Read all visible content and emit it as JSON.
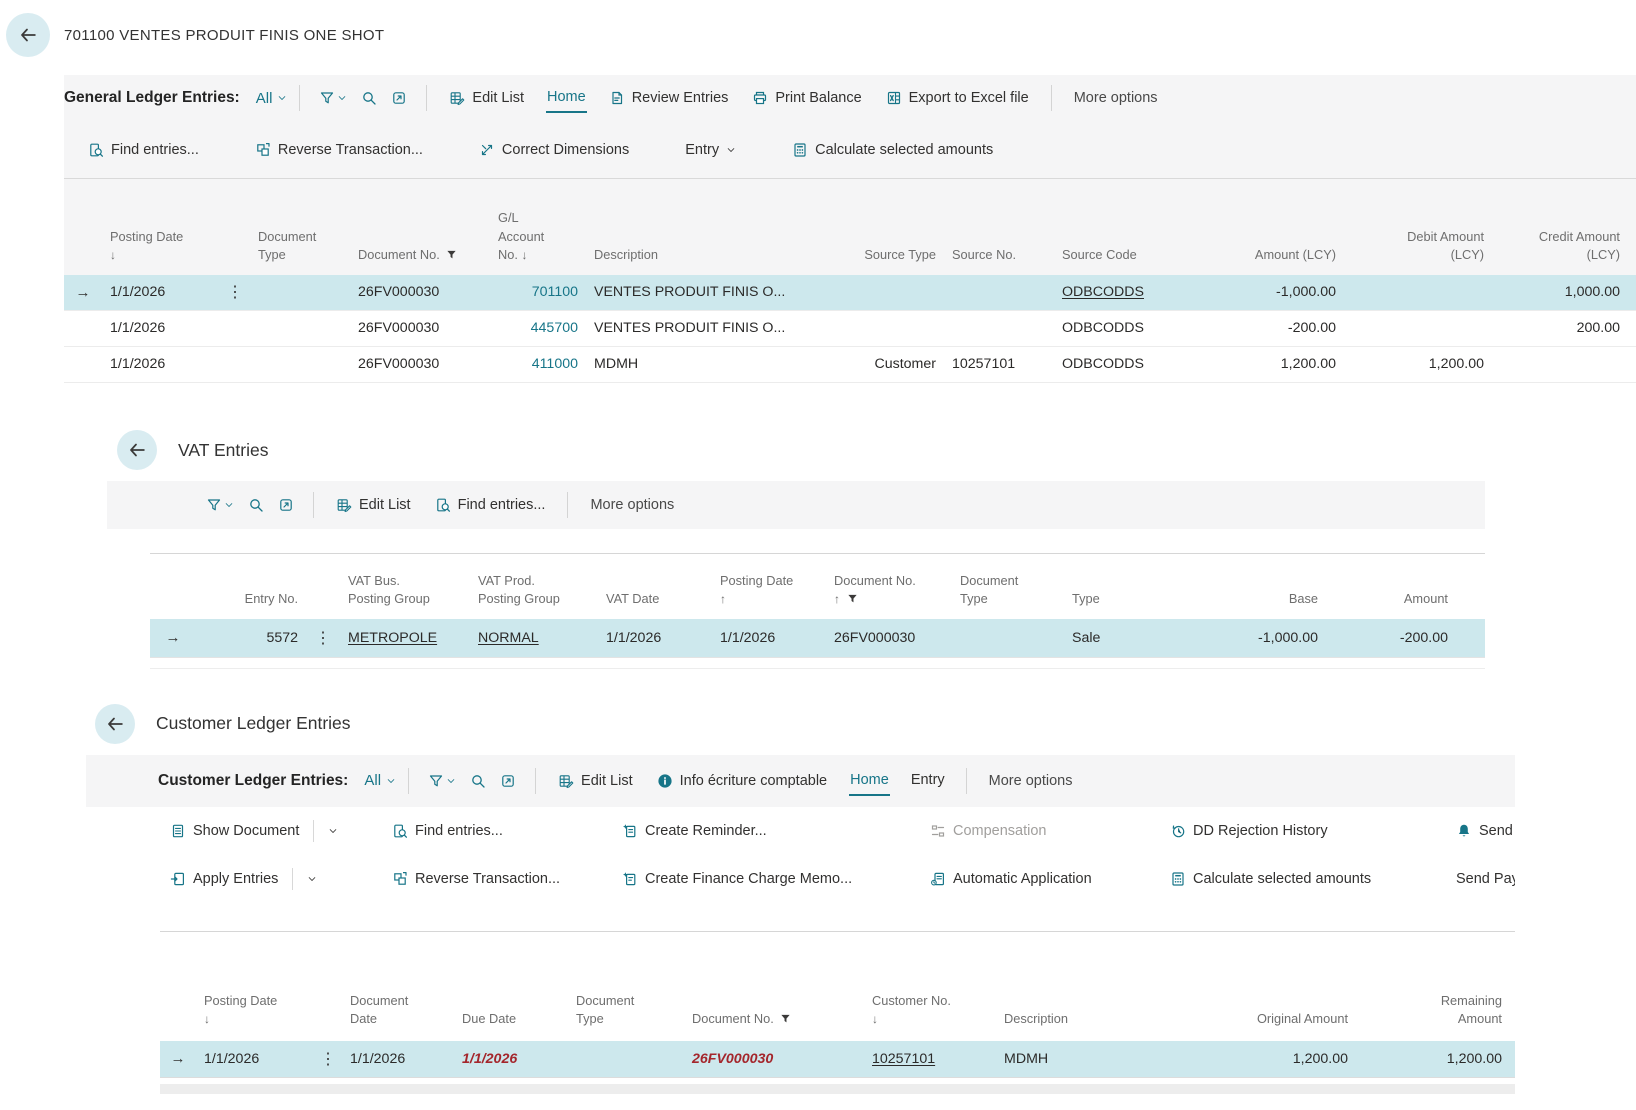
{
  "accent": "#177588",
  "gl": {
    "title": "701100 VENTES PRODUIT FINIS ONE SHOT",
    "caption": "General Ledger Entries:",
    "filter_all": "All",
    "more_options": "More options",
    "actions": [
      {
        "label": "Edit List",
        "icon": "edit-list"
      },
      {
        "label": "Home",
        "tab": true,
        "active": true
      },
      {
        "label": "Review Entries",
        "icon": "review-entries"
      },
      {
        "label": "Print Balance",
        "icon": "printer"
      },
      {
        "label": "Export to Excel file",
        "icon": "excel"
      }
    ],
    "commands": [
      {
        "label": "Find entries...",
        "icon": "find-entries"
      },
      {
        "label": "Reverse Transaction...",
        "icon": "reverse"
      },
      {
        "label": "Correct Dimensions",
        "icon": "correct-dimensions"
      },
      {
        "label": "Entry",
        "chevron": true
      },
      {
        "label": "Calculate selected amounts",
        "icon": "calculator"
      }
    ],
    "columns": [
      {
        "id": "posting-date",
        "lines": [
          "Posting Date",
          "{d}"
        ],
        "align": "left"
      },
      {
        "id": "document-type",
        "lines": [
          "Document",
          "Type"
        ],
        "align": "left"
      },
      {
        "id": "document-no",
        "lines": [
          "Document No. {f}"
        ],
        "align": "left"
      },
      {
        "id": "gl-account-no",
        "lines": [
          "G/L",
          "Account",
          "No. {d}"
        ],
        "align": "left",
        "cell_align": "right"
      },
      {
        "id": "description",
        "lines": [
          "Description"
        ],
        "align": "left"
      },
      {
        "id": "source-type",
        "lines": [
          "Source Type"
        ],
        "align": "right",
        "cell_align": "right"
      },
      {
        "id": "source-no",
        "lines": [
          "Source No."
        ],
        "align": "left"
      },
      {
        "id": "source-code",
        "lines": [
          "Source Code"
        ],
        "align": "left"
      },
      {
        "id": "amount-lcy",
        "lines": [
          "Amount (LCY)"
        ],
        "align": "right",
        "cell_align": "right"
      },
      {
        "id": "debit-amount-lcy",
        "lines": [
          "Debit Amount",
          "(LCY)"
        ],
        "align": "right",
        "cell_align": "right"
      },
      {
        "id": "credit-amount-lcy",
        "lines": [
          "Credit Amount",
          "(LCY)"
        ],
        "align": "right",
        "cell_align": "right"
      }
    ],
    "rows": [
      {
        "selected": true,
        "cells": [
          "1/1/2026",
          "",
          "26FV000030",
          {
            "t": "701100",
            "s": "lnk"
          },
          "VENTES PRODUIT FINIS O...",
          "",
          "",
          {
            "t": "ODBCODDS",
            "s": "lkp"
          },
          "-1,000.00",
          "",
          "1,000.00"
        ]
      },
      {
        "selected": false,
        "cells": [
          "1/1/2026",
          "",
          "26FV000030",
          {
            "t": "445700",
            "s": "lnk"
          },
          "VENTES PRODUIT FINIS O...",
          "",
          "",
          "ODBCODDS",
          "-200.00",
          "",
          "200.00"
        ]
      },
      {
        "selected": false,
        "cells": [
          "1/1/2026",
          "",
          "26FV000030",
          {
            "t": "411000",
            "s": "lnk"
          },
          "MDMH",
          "Customer",
          "10257101",
          "ODBCODDS",
          "1,200.00",
          "1,200.00",
          ""
        ]
      }
    ]
  },
  "vat": {
    "title": "VAT Entries",
    "more_options": "More options",
    "actions": [
      {
        "label": "Edit List",
        "icon": "edit-list"
      },
      {
        "label": "Find entries...",
        "icon": "find-entries"
      }
    ],
    "columns": [
      {
        "id": "entry-no",
        "lines": [
          "Entry No."
        ],
        "align": "right",
        "cell_align": "right"
      },
      {
        "id": "vat-bus-posting-group",
        "lines": [
          "VAT Bus.",
          "Posting Group"
        ],
        "align": "left"
      },
      {
        "id": "vat-prod-posting-group",
        "lines": [
          "VAT Prod.",
          "Posting Group"
        ],
        "align": "left"
      },
      {
        "id": "vat-date",
        "lines": [
          "VAT Date"
        ],
        "align": "left"
      },
      {
        "id": "posting-date",
        "lines": [
          "Posting Date",
          "{u}"
        ],
        "align": "left"
      },
      {
        "id": "document-no",
        "lines": [
          "Document No.",
          "{u} {f}"
        ],
        "align": "left"
      },
      {
        "id": "document-type",
        "lines": [
          "Document",
          "Type"
        ],
        "align": "left"
      },
      {
        "id": "type",
        "lines": [
          "Type"
        ],
        "align": "left"
      },
      {
        "id": "base",
        "lines": [
          "Base"
        ],
        "align": "right",
        "cell_align": "right"
      },
      {
        "id": "amount",
        "lines": [
          "Amount"
        ],
        "align": "right",
        "cell_align": "right"
      }
    ],
    "rows": [
      {
        "selected": true,
        "cells": [
          "5572",
          {
            "t": "METROPOLE",
            "s": "lkp"
          },
          {
            "t": "NORMAL",
            "s": "lkp"
          },
          "1/1/2026",
          "1/1/2026",
          "26FV000030",
          "",
          "Sale",
          "-1,000.00",
          "-200.00"
        ]
      }
    ]
  },
  "cust": {
    "title": "Customer Ledger Entries",
    "caption": "Customer Ledger Entries:",
    "filter_all": "All",
    "more_options": "More options",
    "actions": [
      {
        "label": "Edit List",
        "icon": "edit-list"
      },
      {
        "label": "Info écriture comptable",
        "icon": "info"
      },
      {
        "label": "Home",
        "tab": true,
        "active": true
      },
      {
        "label": "Entry",
        "tab": true
      }
    ],
    "commands_row1": [
      {
        "label": "Show Document",
        "icon": "show-document",
        "split": true
      },
      {
        "label": "Find entries...",
        "icon": "find-entries"
      },
      {
        "label": "Create Reminder...",
        "icon": "create-reminder"
      },
      {
        "label": "Compensation",
        "icon": "compensation",
        "disabled": true
      },
      {
        "label": "DD Rejection History",
        "icon": "history"
      },
      {
        "label": "Send To",
        "icon": "bell"
      }
    ],
    "commands_row2": [
      {
        "label": "Apply Entries",
        "icon": "apply-entries",
        "split": true
      },
      {
        "label": "Reverse Transaction...",
        "icon": "reverse"
      },
      {
        "label": "Create Finance Charge Memo...",
        "icon": "finance-memo"
      },
      {
        "label": "Automatic Application",
        "icon": "automatic-application"
      },
      {
        "label": "Calculate selected amounts",
        "icon": "calculator"
      },
      {
        "label": "Send Pay"
      }
    ],
    "columns": [
      {
        "id": "posting-date",
        "lines": [
          "Posting Date",
          "{d}"
        ],
        "align": "left"
      },
      {
        "id": "document-date",
        "lines": [
          "Document",
          "Date"
        ],
        "align": "left"
      },
      {
        "id": "due-date",
        "lines": [
          "Due Date"
        ],
        "align": "left"
      },
      {
        "id": "document-type",
        "lines": [
          "Document",
          "Type"
        ],
        "align": "left"
      },
      {
        "id": "document-no",
        "lines": [
          "Document No. {f}"
        ],
        "align": "left"
      },
      {
        "id": "customer-no",
        "lines": [
          "Customer No.",
          "{d}"
        ],
        "align": "left"
      },
      {
        "id": "description",
        "lines": [
          "Description"
        ],
        "align": "left"
      },
      {
        "id": "original-amount",
        "lines": [
          "Original Amount"
        ],
        "align": "right",
        "cell_align": "right"
      },
      {
        "id": "remaining-amount",
        "lines": [
          "Remaining",
          "Amount"
        ],
        "align": "right",
        "cell_align": "right"
      }
    ],
    "rows": [
      {
        "selected": true,
        "cells": [
          "1/1/2026",
          "1/1/2026",
          {
            "t": "1/1/2026",
            "s": "red"
          },
          "",
          {
            "t": "26FV000030",
            "s": "red"
          },
          {
            "t": "10257101",
            "s": "lkp"
          },
          "MDMH",
          "1,200.00",
          "1,200.00"
        ]
      }
    ]
  }
}
